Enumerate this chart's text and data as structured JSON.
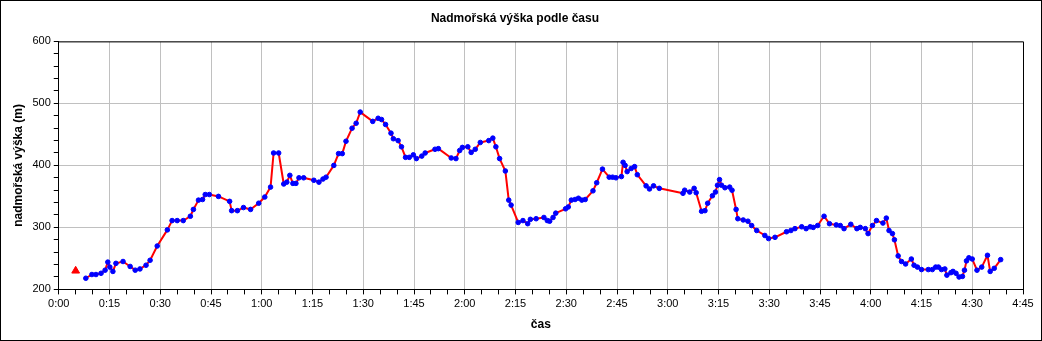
{
  "chart_data": {
    "type": "line",
    "title": "Nadmořská výška podle času",
    "xlabel": "čas",
    "ylabel": "nadmořská výška (m)",
    "xlim": [
      0,
      285
    ],
    "ylim": [
      200,
      600
    ],
    "xticks": [
      {
        "value": 0,
        "label": "0:00"
      },
      {
        "value": 5,
        "label": null
      },
      {
        "value": 10,
        "label": null
      },
      {
        "value": 15,
        "label": "0:15"
      },
      {
        "value": 20,
        "label": null
      },
      {
        "value": 25,
        "label": null
      },
      {
        "value": 30,
        "label": "0:30"
      },
      {
        "value": 35,
        "label": null
      },
      {
        "value": 40,
        "label": null
      },
      {
        "value": 45,
        "label": "0:45"
      },
      {
        "value": 50,
        "label": null
      },
      {
        "value": 55,
        "label": null
      },
      {
        "value": 60,
        "label": "1:00"
      },
      {
        "value": 65,
        "label": null
      },
      {
        "value": 70,
        "label": null
      },
      {
        "value": 75,
        "label": "1:15"
      },
      {
        "value": 80,
        "label": null
      },
      {
        "value": 85,
        "label": null
      },
      {
        "value": 90,
        "label": "1:30"
      },
      {
        "value": 95,
        "label": null
      },
      {
        "value": 100,
        "label": null
      },
      {
        "value": 105,
        "label": "1:45"
      },
      {
        "value": 110,
        "label": null
      },
      {
        "value": 115,
        "label": null
      },
      {
        "value": 120,
        "label": "2:00"
      },
      {
        "value": 125,
        "label": null
      },
      {
        "value": 130,
        "label": null
      },
      {
        "value": 135,
        "label": "2:15"
      },
      {
        "value": 140,
        "label": null
      },
      {
        "value": 145,
        "label": null
      },
      {
        "value": 150,
        "label": "2:30"
      },
      {
        "value": 155,
        "label": null
      },
      {
        "value": 160,
        "label": null
      },
      {
        "value": 165,
        "label": "2:45"
      },
      {
        "value": 170,
        "label": null
      },
      {
        "value": 175,
        "label": null
      },
      {
        "value": 180,
        "label": "3:00"
      },
      {
        "value": 185,
        "label": null
      },
      {
        "value": 190,
        "label": null
      },
      {
        "value": 195,
        "label": "3:15"
      },
      {
        "value": 200,
        "label": null
      },
      {
        "value": 205,
        "label": null
      },
      {
        "value": 210,
        "label": "3:30"
      },
      {
        "value": 215,
        "label": null
      },
      {
        "value": 220,
        "label": null
      },
      {
        "value": 225,
        "label": "3:45"
      },
      {
        "value": 230,
        "label": null
      },
      {
        "value": 235,
        "label": null
      },
      {
        "value": 240,
        "label": "4:00"
      },
      {
        "value": 245,
        "label": null
      },
      {
        "value": 250,
        "label": null
      },
      {
        "value": 255,
        "label": "4:15"
      },
      {
        "value": 260,
        "label": null
      },
      {
        "value": 265,
        "label": null
      },
      {
        "value": 270,
        "label": "4:30"
      },
      {
        "value": 275,
        "label": null
      },
      {
        "value": 280,
        "label": null
      },
      {
        "value": 285,
        "label": "4:45"
      }
    ],
    "yticks": [
      200,
      {
        "value": 220,
        "label": null
      },
      {
        "value": 240,
        "label": null
      },
      {
        "value": 260,
        "label": null
      },
      {
        "value": 280,
        "label": null
      },
      300,
      {
        "value": 320,
        "label": null
      },
      {
        "value": 340,
        "label": null
      },
      {
        "value": 360,
        "label": null
      },
      {
        "value": 380,
        "label": null
      },
      400,
      {
        "value": 420,
        "label": null
      },
      {
        "value": 440,
        "label": null
      },
      {
        "value": 460,
        "label": null
      },
      {
        "value": 480,
        "label": null
      },
      500,
      {
        "value": 520,
        "label": null
      },
      {
        "value": 540,
        "label": null
      },
      {
        "value": 560,
        "label": null
      },
      {
        "value": 580,
        "label": null
      },
      600
    ],
    "grid": true,
    "legend": false,
    "series": [
      {
        "color": "#ff0000",
        "marker": "circle",
        "line_style": "solid",
        "colors": [
          "#0000ff",
          "#0000ff",
          "#0000ff",
          "#0000ff",
          "#0000ff",
          "#0000ff",
          "#0000ff",
          "#0000ff",
          "#0000ff",
          "#0000ff",
          "#0000ff",
          "#0000ff",
          "#0000ff",
          "#0000ff",
          "#0000ff",
          "#0000ff",
          "#0000ff",
          "#0000ff",
          "#0000ff",
          "#0000ff",
          "#0000ff",
          "#0000ff",
          "#0000ff",
          "#0000ff",
          "#0000ff",
          "#0000ff",
          "#0000ff",
          "#0000ff",
          "#0000ff",
          "#0000ff",
          "#0000ff",
          "#0000ff",
          "#0000ff",
          "#0000ff",
          "#0000ff",
          "#0000ff",
          "#0000ff",
          "#0000ff",
          "#0000ff",
          "#0000ff",
          "#0000ff",
          "#0000ff",
          "#0000ff",
          "#0000ff",
          "#0000ff",
          "#0000ff",
          "#0000ff",
          "#0000ff",
          "#0000ff",
          "#0000ff",
          "#0000ff",
          "#0000ff",
          "#0000ff",
          "#0000ff",
          "#0000ff",
          "#0000ff",
          "#0000ff",
          "#0000ff",
          "#0000ff",
          "#0000ff",
          "#0000ff",
          "#0000ff",
          "#0000ff",
          "#0000ff",
          "#0000ff",
          "#0000ff",
          "#0000ff",
          "#0000ff",
          "#0000ff",
          "#0000ff",
          "#0000ff",
          "#0000ff",
          "#0000ff",
          "#0000ff",
          "#0000ff",
          "#0000ff",
          "#0000ff",
          "#0000ff",
          "#0000ff",
          "#0000ff",
          "#0000ff",
          "#0000ff",
          "#0000ff",
          "#0000ff",
          "#0000ff",
          "#0000ff",
          "#0000ff",
          "#0000ff",
          "#0000ff",
          "#0000ff",
          "#0000ff",
          "#0000ff",
          "#0000ff",
          "#0000ff",
          "#0000ff",
          "#0000ff",
          "#0000ff",
          "#0000ff",
          "#0000ff",
          "#0000ff",
          "#0000ff",
          "#0000ff",
          "#0000ff",
          "#0000ff",
          "#0000ff",
          "#0000ff",
          "#0000ff",
          "#0000ff",
          "#0000ff",
          "#0000ff",
          "#0000ff",
          "#0000ff",
          "#0000ff",
          "#0000ff",
          "#0000ff",
          "#0000ff",
          "#0000ff",
          "#0000ff",
          "#0000ff",
          "#0000ff",
          "#0000ff",
          "#0000ff",
          "#0000ff",
          "#0000ff",
          "#0000ff",
          "#0000ff",
          "#0000ff",
          "#0000ff",
          "#0000ff",
          "#0000ff",
          "#0000ff",
          "#0000ff",
          "#0000ff",
          "#0000ff",
          "#0000ff",
          "#0000ff",
          "#0000ff",
          "#0000ff",
          "#0000ff",
          "#0000ff",
          "#0000ff",
          "#0000ff",
          "#0000ff",
          "#0000ff",
          "#0000ff",
          "#0000ff",
          "#0000ff",
          "#0000ff",
          "#0000ff",
          "#0000ff",
          "#0000ff",
          "#0000ff",
          "#0000ff",
          "#0000ff",
          "#0000ff",
          "#0000ff",
          "#0000ff",
          "#0000ff",
          "#0000ff",
          "#0000ff",
          "#0000ff",
          "#0000ff",
          "#0000ff",
          "#0000ff",
          "#0000ff",
          "#0000ff",
          "#0000ff",
          "#0000ff",
          "#0000ff",
          "#0000ff",
          "#0000ff",
          "#0000ff",
          "#0000ff",
          "#0000ff",
          "#0000ff",
          "#0000ff",
          "#0000ff",
          "#0000ff",
          "#0000ff",
          "#0000ff",
          "#0000ff",
          "#0000ff",
          "#0000ff",
          "#0000ff",
          "#0000ff",
          "#0000ff",
          "#0000ff",
          "#0000ff",
          "#0000ff",
          "#0000ff",
          "#0000ff",
          "#0000ff",
          "#0000ff",
          "#0000ff",
          "#0000ff",
          "#0000ff",
          "#0000ff",
          "#0000ff",
          "#0000ff"
        ],
        "x": [
          8.0,
          9.8,
          11.0,
          12.5,
          13.7,
          14.5,
          15.1,
          16.0,
          16.9,
          19.0,
          21.1,
          22.6,
          24.0,
          25.8,
          27.0,
          29.1,
          32.1,
          33.5,
          35.0,
          36.8,
          38.9,
          39.8,
          41.3,
          42.5,
          43.3,
          44.5,
          47.2,
          50.5,
          51.1,
          52.8,
          54.6,
          56.7,
          59.1,
          60.9,
          62.6,
          63.5,
          65.0,
          66.5,
          67.4,
          68.3,
          69.2,
          70.1,
          71.0,
          72.4,
          75.4,
          76.9,
          78.1,
          79.0,
          81.3,
          82.7,
          83.8,
          84.9,
          86.7,
          87.9,
          89.1,
          92.8,
          94.4,
          95.4,
          96.6,
          98.2,
          98.9,
          100.3,
          101.3,
          102.5,
          103.6,
          104.8,
          105.7,
          107.3,
          108.3,
          111.2,
          112.2,
          116.0,
          117.4,
          118.5,
          119.3,
          120.9,
          121.9,
          123.1,
          124.6,
          127.1,
          128.3,
          129.2,
          130.3,
          132.0,
          133.0,
          133.7,
          135.8,
          137.2,
          138.6,
          139.4,
          141.1,
          143.4,
          144.4,
          145.1,
          146.1,
          146.9,
          149.8,
          150.6,
          151.5,
          152.6,
          153.6,
          154.6,
          155.6,
          157.9,
          159.0,
          160.7,
          162.7,
          163.7,
          164.7,
          166.3,
          166.8,
          167.4,
          168.0,
          169.2,
          170.2,
          171.0,
          173.6,
          174.6,
          175.8,
          177.5,
          184.5,
          185.0,
          186.5,
          187.8,
          188.4,
          190.0,
          191.0,
          191.8,
          193.2,
          194.1,
          194.7,
          195.3,
          195.9,
          196.9,
          198.3,
          199.0,
          200.2,
          200.7,
          202.3,
          203.7,
          204.8,
          206.3,
          208.7,
          209.8,
          211.7,
          215.1,
          216.4,
          217.6,
          219.6,
          220.9,
          222.1,
          223.0,
          224.3,
          226.2,
          227.8,
          229.8,
          231.0,
          232.1,
          234.1,
          235.9,
          236.9,
          238.4,
          239.2,
          240.5,
          241.7,
          243.6,
          244.6,
          245.4,
          246.4,
          247.0,
          248.1,
          249.1,
          250.3,
          252.0,
          252.8,
          253.8,
          255.0,
          257.0,
          258.2,
          259.2,
          260.0,
          260.9,
          261.9,
          262.5,
          263.7,
          264.3,
          265.2,
          266.1,
          267.1,
          267.7,
          268.3,
          269.0,
          270.0,
          271.4,
          272.8,
          274.5,
          275.3,
          276.5,
          278.4
        ],
        "values": [
          218,
          224,
          224,
          226,
          231,
          244,
          236,
          229,
          242,
          245,
          237,
          231,
          233,
          239,
          247,
          270,
          296,
          311,
          311,
          311,
          318,
          329,
          344,
          345,
          353,
          353,
          350,
          342,
          327,
          327,
          332,
          329,
          339,
          349,
          365,
          420,
          420,
          370,
          373,
          384,
          371,
          371,
          380,
          380,
          376,
          373,
          378,
          381,
          400,
          419,
          419,
          439,
          460,
          468,
          486,
          471,
          476,
          474,
          466,
          452,
          443,
          440,
          430,
          413,
          413,
          417,
          411,
          415,
          420,
          426,
          427,
          412,
          411,
          424,
          429,
          430,
          421,
          426,
          437,
          440,
          444,
          430,
          411,
          391,
          344,
          336,
          308,
          311,
          306,
          313,
          314,
          316,
          311,
          310,
          316,
          323,
          330,
          333,
          344,
          345,
          347,
          344,
          345,
          359,
          372,
          394,
          381,
          381,
          380,
          382,
          405,
          400,
          390,
          395,
          398,
          385,
          367,
          362,
          367,
          363,
          355,
          360,
          357,
          363,
          356,
          326,
          327,
          339,
          351,
          357,
          368,
          377,
          368,
          364,
          365,
          360,
          329,
          314,
          312,
          310,
          303,
          295,
          287,
          282,
          284,
          293,
          295,
          298,
          301,
          298,
          301,
          300,
          303,
          318,
          306,
          304,
          303,
          298,
          305,
          298,
          300,
          298,
          290,
          303,
          311,
          307,
          315,
          295,
          290,
          280,
          254,
          245,
          241,
          249,
          239,
          236,
          232,
          232,
          232,
          236,
          236,
          232,
          233,
          223,
          227,
          229,
          226,
          220,
          221,
          231,
          246,
          251,
          249,
          231,
          236,
          255,
          229,
          234,
          248
        ]
      },
      {
        "type": "scatter",
        "color": "#ff0000",
        "marker": "triangle",
        "x": [
          5
        ],
        "values": [
          230
        ]
      }
    ]
  }
}
